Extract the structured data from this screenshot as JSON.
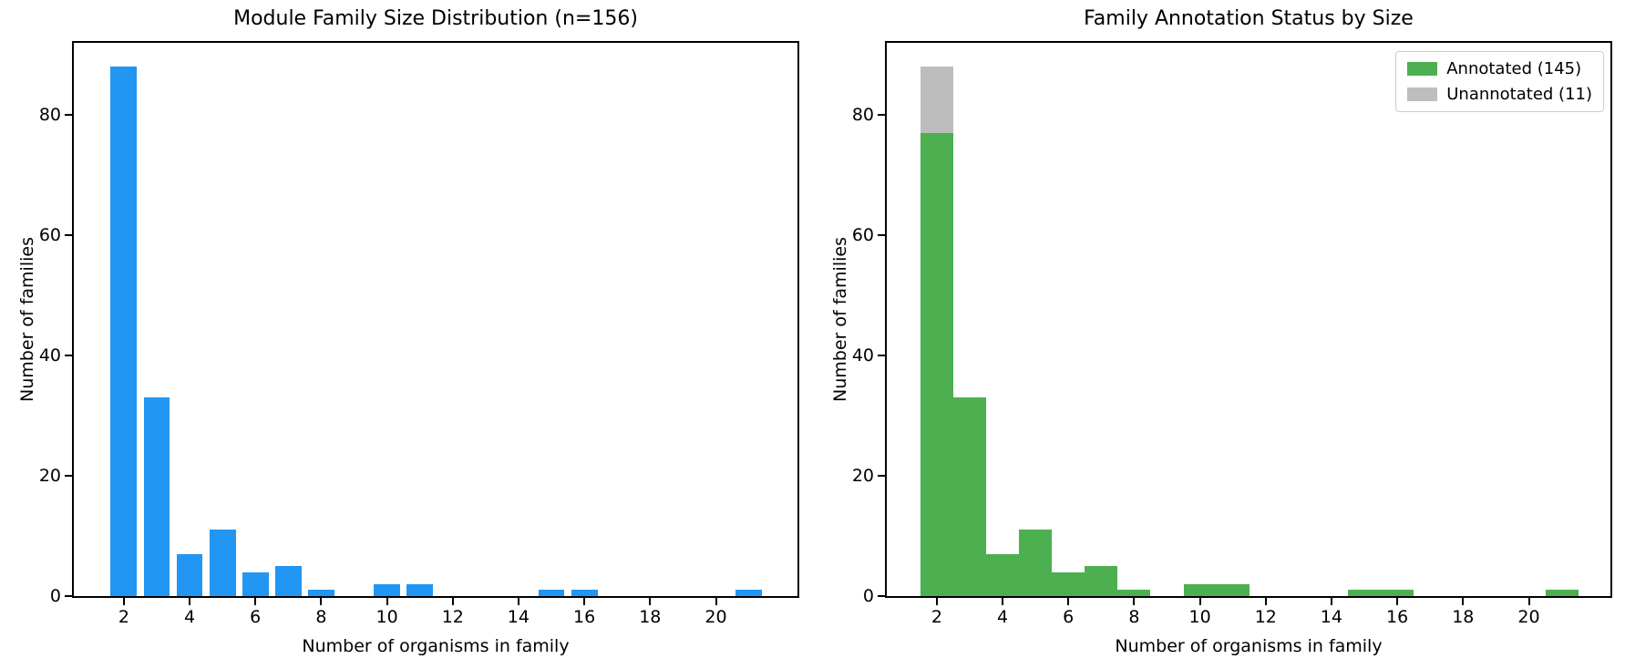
{
  "chart_data": [
    {
      "type": "bar",
      "stacked": false,
      "title": "Module Family Size Distribution (n=156)",
      "xlabel": "Number of organisms in family",
      "ylabel": "Number of families",
      "categories": [
        2,
        3,
        4,
        5,
        6,
        7,
        8,
        9,
        10,
        11,
        12,
        13,
        14,
        15,
        16,
        17,
        18,
        19,
        20,
        21
      ],
      "values": [
        88,
        33,
        7,
        11,
        4,
        5,
        1,
        0,
        2,
        2,
        0,
        0,
        0,
        1,
        1,
        0,
        0,
        0,
        0,
        1
      ],
      "bar_color": "#2196F3",
      "bar_width": 0.8,
      "xlim": [
        0.48,
        22.48
      ],
      "ylim": [
        0,
        92
      ],
      "xticks": [
        2,
        4,
        6,
        8,
        10,
        12,
        14,
        16,
        18,
        20
      ],
      "yticks": [
        0,
        20,
        40,
        60,
        80
      ],
      "grid": false,
      "legend": null
    },
    {
      "type": "bar",
      "stacked": true,
      "title": "Family Annotation Status by Size",
      "xlabel": "Number of organisms in family",
      "ylabel": "Number of families",
      "categories": [
        2,
        3,
        4,
        5,
        6,
        7,
        8,
        9,
        10,
        11,
        12,
        13,
        14,
        15,
        16,
        17,
        18,
        19,
        20,
        21
      ],
      "series": [
        {
          "name": "Annotated (145)",
          "color": "#4CAF50",
          "values": [
            77,
            33,
            7,
            11,
            4,
            5,
            1,
            0,
            2,
            2,
            0,
            0,
            0,
            1,
            1,
            0,
            0,
            0,
            0,
            1
          ]
        },
        {
          "name": "Unannotated (11)",
          "color": "#BDBDBD",
          "values": [
            11,
            0,
            0,
            0,
            0,
            0,
            0,
            0,
            0,
            0,
            0,
            0,
            0,
            0,
            0,
            0,
            0,
            0,
            0,
            0
          ]
        }
      ],
      "bar_width": 1.0,
      "xlim": [
        0.48,
        22.48
      ],
      "ylim": [
        0,
        92
      ],
      "xticks": [
        2,
        4,
        6,
        8,
        10,
        12,
        14,
        16,
        18,
        20
      ],
      "yticks": [
        0,
        20,
        40,
        60,
        80
      ],
      "grid": false,
      "legend": {
        "position": "upper right"
      }
    }
  ]
}
